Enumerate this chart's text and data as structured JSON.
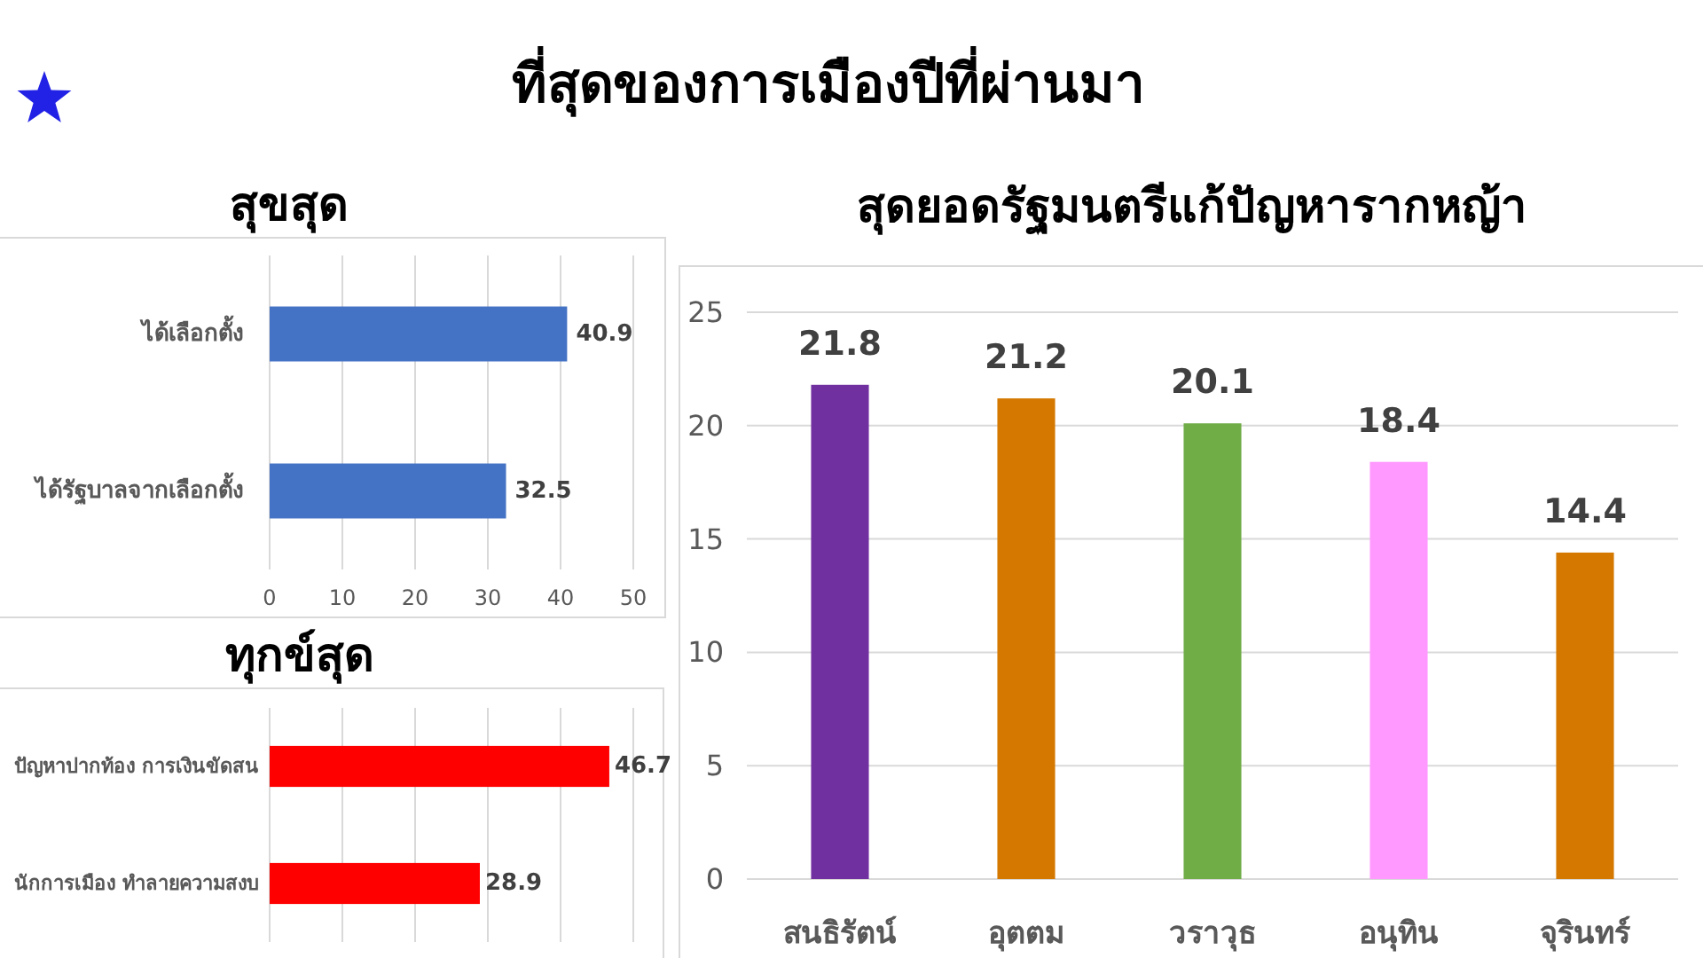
{
  "chart_data": [
    {
      "type": "other",
      "title": "ที่สุดของการเมืองปีที่ผ่านมา"
    },
    {
      "type": "bar",
      "orientation": "horizontal",
      "title": "สุขสุด",
      "categories": [
        "ได้เลือกตั้ง",
        "ได้รัฐบาลจากเลือกตั้ง"
      ],
      "values": [
        40.9,
        32.5
      ],
      "color": "#4472c4",
      "xlim": [
        0,
        50
      ],
      "xticks": [
        0,
        10,
        20,
        30,
        40,
        50
      ],
      "grid": "x",
      "data_labels": true
    },
    {
      "type": "bar",
      "title": "สุดยอดรัฐมนตรีแก้ปัญหารากหญ้า",
      "categories": [
        "สนธิรัตน์",
        "อุตตม",
        "วราวุธ",
        "อนุทิน",
        "จุรินทร์"
      ],
      "values": [
        21.8,
        21.2,
        20.1,
        18.4,
        14.4
      ],
      "colors": [
        "#7030a0",
        "#d47800",
        "#70ad47",
        "#ff99ff",
        "#d47800"
      ],
      "ylim": [
        0,
        25
      ],
      "yticks": [
        0,
        5,
        10,
        15,
        20,
        25
      ],
      "grid": "y",
      "data_labels": true
    },
    {
      "type": "bar",
      "orientation": "horizontal",
      "title": "ทุกข์สุด",
      "categories": [
        "ปัญหาปากท้อง การเงินขัดสน",
        "นักการเมือง ทำลายความสงบ"
      ],
      "values": [
        46.7,
        28.9
      ],
      "color": "#ff0000",
      "xlim": [
        0,
        50
      ],
      "xticks": [
        {
          "value": 0,
          "label": null
        },
        {
          "value": 10,
          "label": null
        },
        {
          "value": 20,
          "label": null
        },
        {
          "value": 30,
          "label": null
        },
        {
          "value": 40,
          "label": null
        },
        {
          "value": 50,
          "label": null
        }
      ],
      "grid": "x",
      "tick_labels": "y",
      "data_labels": true
    }
  ]
}
